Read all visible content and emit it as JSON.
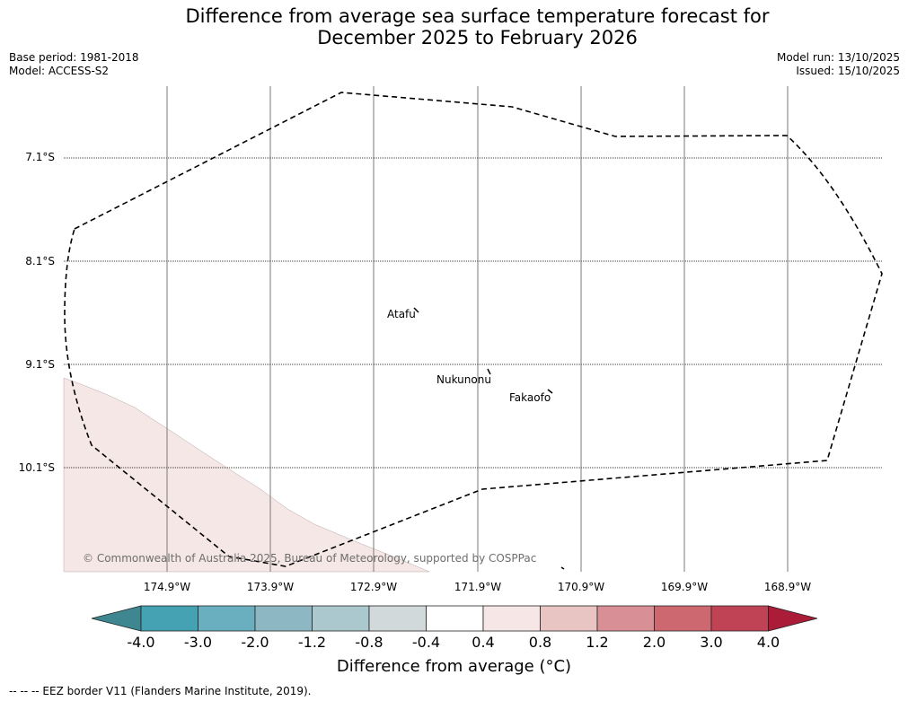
{
  "title": {
    "line1": "Difference from average sea surface temperature forecast for",
    "line2": "December 2025 to February 2026"
  },
  "meta": {
    "base_period": "Base period: 1981-2018",
    "model": "Model: ACCESS-S2",
    "model_run": "Model run: 13/10/2025",
    "issued": "Issued: 15/10/2025"
  },
  "map": {
    "lat_labels": [
      "7.1°S",
      "8.1°S",
      "9.1°S",
      "10.1°S"
    ],
    "lon_labels": [
      "174.9°W",
      "173.9°W",
      "172.9°W",
      "171.9°W",
      "170.9°W",
      "169.9°W",
      "168.9°W"
    ],
    "places": [
      "Atafu",
      "Nukunonu",
      "Fakaofo"
    ],
    "copyright": "© Commonwealth of Australia 2025, Bureau of Meteorology, supported by COSPPac"
  },
  "colorbar": {
    "ticks": [
      "-4.0",
      "-3.0",
      "-2.0",
      "-1.2",
      "-0.8",
      "-0.4",
      "0.4",
      "0.8",
      "1.2",
      "2.0",
      "3.0",
      "4.0"
    ],
    "colors": [
      "#3f8790",
      "#44a2b2",
      "#6aafbf",
      "#8db8c3",
      "#aac8cd",
      "#d2d9db",
      "#ffffff",
      "#f6e7e6",
      "#e8c5c2",
      "#d88f95",
      "#cd6770",
      "#c04355",
      "#aa1c38"
    ],
    "title": "Difference from average (°C)"
  },
  "legend": {
    "text": "--  --  -- EEZ border V11 (Flanders Marine Institute, 2019)."
  }
}
